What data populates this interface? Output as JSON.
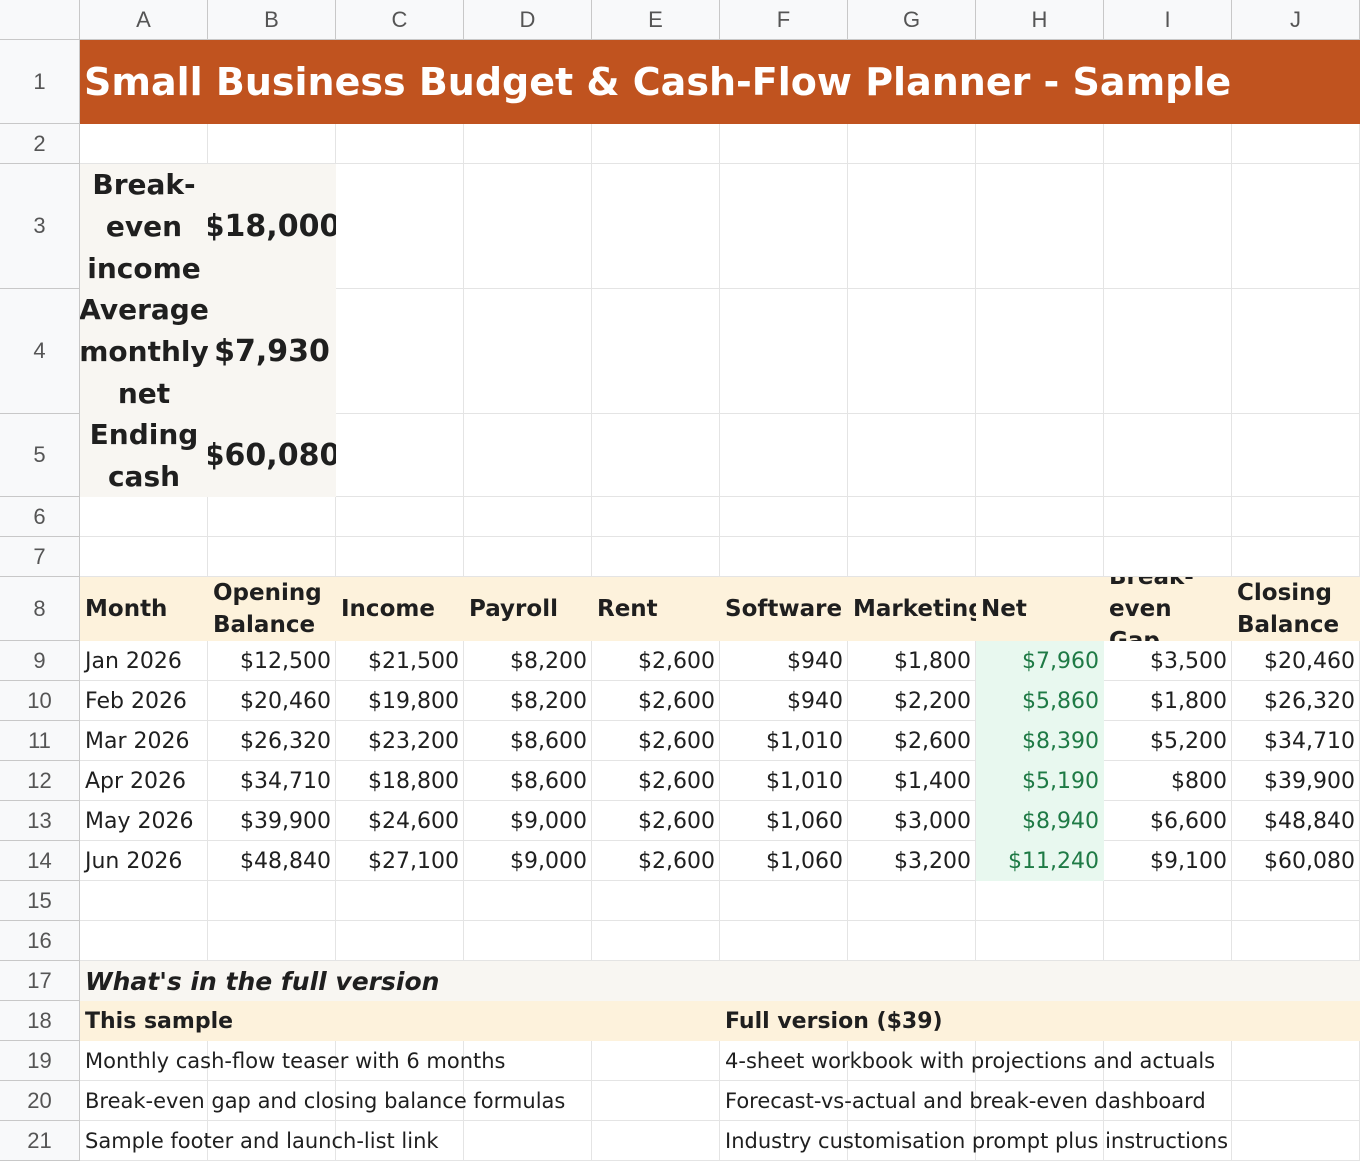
{
  "columns": [
    "A",
    "B",
    "C",
    "D",
    "E",
    "F",
    "G",
    "H",
    "I",
    "J"
  ],
  "rows": [
    "1",
    "2",
    "3",
    "4",
    "5",
    "6",
    "7",
    "8",
    "9",
    "10",
    "11",
    "12",
    "13",
    "14",
    "15",
    "16",
    "17",
    "18",
    "19",
    "20",
    "21"
  ],
  "title": "Small Business Budget & Cash-Flow Planner - Sample",
  "kpis": [
    {
      "label": "Break-even income",
      "value": "$18,000"
    },
    {
      "label": "Average monthly net",
      "value": "$7,930"
    },
    {
      "label": "Ending cash",
      "value": "$60,080"
    }
  ],
  "table": {
    "headers": [
      "Month",
      "Opening Balance",
      "Income",
      "Payroll",
      "Rent",
      "Software",
      "Marketing",
      "Net",
      "Break-even Gap",
      "Closing Balance"
    ],
    "rows": [
      [
        "Jan 2026",
        "$12,500",
        "$21,500",
        "$8,200",
        "$2,600",
        "$940",
        "$1,800",
        "$7,960",
        "$3,500",
        "$20,460"
      ],
      [
        "Feb 2026",
        "$20,460",
        "$19,800",
        "$8,200",
        "$2,600",
        "$940",
        "$2,200",
        "$5,860",
        "$1,800",
        "$26,320"
      ],
      [
        "Mar 2026",
        "$26,320",
        "$23,200",
        "$8,600",
        "$2,600",
        "$1,010",
        "$2,600",
        "$8,390",
        "$5,200",
        "$34,710"
      ],
      [
        "Apr 2026",
        "$34,710",
        "$18,800",
        "$8,600",
        "$2,600",
        "$1,010",
        "$1,400",
        "$5,190",
        "$800",
        "$39,900"
      ],
      [
        "May 2026",
        "$39,900",
        "$24,600",
        "$9,000",
        "$2,600",
        "$1,060",
        "$3,000",
        "$8,940",
        "$6,600",
        "$48,840"
      ],
      [
        "Jun 2026",
        "$48,840",
        "$27,100",
        "$9,000",
        "$2,600",
        "$1,060",
        "$3,200",
        "$11,240",
        "$9,100",
        "$60,080"
      ]
    ]
  },
  "full_version": {
    "heading": "What's in the full version",
    "sample_header": "This sample",
    "full_header": "Full version ($39)",
    "items": [
      {
        "sample": "Monthly cash-flow teaser with 6 months",
        "full": "4-sheet workbook with projections and actuals"
      },
      {
        "sample": "Break-even gap and closing balance formulas",
        "full": "Forecast-vs-actual and break-even dashboard"
      },
      {
        "sample": "Sample footer and launch-list link",
        "full": "Industry customisation prompt plus instructions"
      }
    ]
  },
  "colors": {
    "title_bg": "#c0531f",
    "kpi_bg": "#f8f6f2",
    "header_bg": "#fdf2dc",
    "net_bg": "#e8f8ef",
    "net_text": "#1e7a45"
  }
}
